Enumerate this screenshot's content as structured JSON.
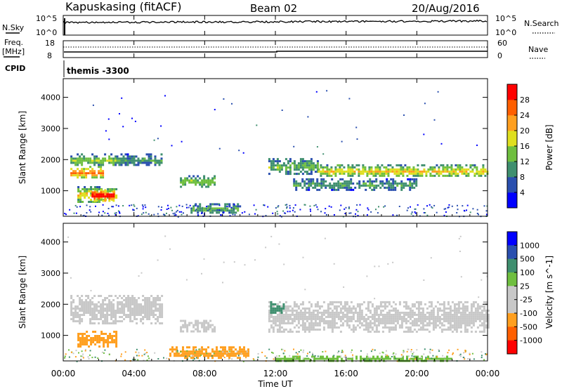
{
  "header": {
    "station": "Kapuskasing (fitACF)",
    "beam": "Beam 02",
    "date": "20/Aug/2016"
  },
  "top_panels": {
    "nsky": {
      "label": "N.Sky",
      "ticks": [
        "10^5",
        "10^0"
      ]
    },
    "nsearch": {
      "label": "N.Search",
      "ticks": [
        "10^5",
        "10^0"
      ]
    },
    "freq": {
      "label_line1": "Freq.",
      "label_line2": "[MHz]",
      "ticks": [
        "18",
        "8"
      ]
    },
    "nave": {
      "label": "Nave",
      "ticks": [
        "60",
        "0"
      ]
    },
    "cpid": {
      "label": "CPID",
      "value": "themis -3300"
    }
  },
  "colors": {
    "power_scale": [
      "#0000ff",
      "#2a4faf",
      "#3f8f6f",
      "#6fbf3f",
      "#dfdf1f",
      "#ff9f1f",
      "#ff5f00",
      "#ff0000"
    ],
    "velocity_scale": [
      "#ff0000",
      "#ff5f00",
      "#ff9f1f",
      "#c8c8c8",
      "#c8c8c8",
      "#6fbf3f",
      "#3f8f6f",
      "#2a4faf",
      "#0000ff"
    ],
    "ground_scatter": "#c8c8c8"
  },
  "chart_data": [
    {
      "type": "heatmap",
      "name": "power",
      "xlabel": "",
      "ylabel": "Slant Range [km]",
      "x_range_hours": [
        0,
        24
      ],
      "ylim": [
        180,
        4600
      ],
      "y_ticks": [
        1000,
        2000,
        3000,
        4000
      ],
      "colorbar": {
        "label": "Power [dB]",
        "range": [
          0,
          32
        ],
        "ticks": [
          4,
          8,
          12,
          16,
          20,
          24,
          28
        ]
      },
      "regions": [
        {
          "t0": 0.4,
          "t1": 2.2,
          "r0": 1400,
          "r1": 1800,
          "level": 22
        },
        {
          "t0": 0.4,
          "t1": 3.0,
          "r0": 1800,
          "r1": 2200,
          "level": 14
        },
        {
          "t0": 0.8,
          "t1": 3.0,
          "r0": 650,
          "r1": 1150,
          "level": 18
        },
        {
          "t0": 1.6,
          "t1": 2.8,
          "r0": 700,
          "r1": 1050,
          "level": 30
        },
        {
          "t0": 3.0,
          "t1": 5.6,
          "r0": 1800,
          "r1": 2200,
          "level": 10
        },
        {
          "t0": 6.6,
          "t1": 8.6,
          "r0": 1150,
          "r1": 1500,
          "level": 14
        },
        {
          "t0": 7.2,
          "t1": 10.0,
          "r0": 280,
          "r1": 600,
          "level": 12
        },
        {
          "t0": 11.6,
          "t1": 14.4,
          "r0": 1550,
          "r1": 2050,
          "level": 12
        },
        {
          "t0": 14.4,
          "t1": 24.0,
          "r0": 1450,
          "r1": 1850,
          "level": 17
        },
        {
          "t0": 13.0,
          "t1": 20.0,
          "r0": 1050,
          "r1": 1400,
          "level": 10
        }
      ]
    },
    {
      "type": "heatmap",
      "name": "velocity",
      "xlabel": "Time UT",
      "ylabel": "Slant Range [km]",
      "x_ticks": [
        "00:00",
        "04:00",
        "08:00",
        "12:00",
        "16:00",
        "20:00",
        "00:00"
      ],
      "x_range_hours": [
        0,
        24
      ],
      "ylim": [
        180,
        4600
      ],
      "y_ticks": [
        1000,
        2000,
        3000,
        4000
      ],
      "colorbar": {
        "label": "Velocity [m s^-1]",
        "ticks": [
          "1000",
          "500",
          "100",
          "25",
          "-25",
          "-100",
          "-500",
          "-1000"
        ]
      },
      "regions": [
        {
          "t0": 0.4,
          "t1": 5.6,
          "r0": 1400,
          "r1": 2300,
          "kind": "ground"
        },
        {
          "t0": 0.8,
          "t1": 3.0,
          "r0": 650,
          "r1": 1150,
          "velocity": -300
        },
        {
          "t0": 6.6,
          "t1": 8.6,
          "r0": 1150,
          "r1": 1500,
          "kind": "ground"
        },
        {
          "t0": 6.0,
          "t1": 10.5,
          "r0": 250,
          "r1": 650,
          "velocity": -200
        },
        {
          "t0": 11.6,
          "t1": 24.0,
          "r0": 1100,
          "r1": 2100,
          "kind": "ground"
        },
        {
          "t0": 11.7,
          "t1": 12.5,
          "r0": 1700,
          "r1": 2100,
          "velocity": 150
        },
        {
          "t0": 12.0,
          "t1": 22.0,
          "r0": 200,
          "r1": 350,
          "velocity": 60
        }
      ]
    }
  ]
}
